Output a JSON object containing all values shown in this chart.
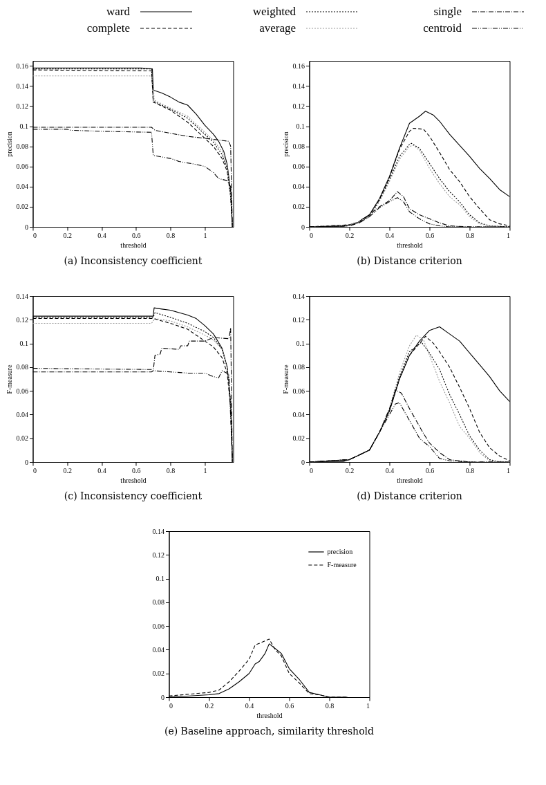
{
  "chart_data": [
    {
      "type": "line",
      "title": "(a) Inconsistency coefficient",
      "xlabel": "threshold",
      "ylabel": "precision",
      "xlim": [
        0,
        1.165
      ],
      "ylim": [
        0,
        0.165
      ],
      "xticks": [
        0,
        0.2,
        0.4,
        0.6,
        0.8,
        1
      ],
      "yticks": [
        0,
        0.02,
        0.04,
        0.06,
        0.08,
        0.1,
        0.12,
        0.14,
        0.16
      ],
      "legend": "top",
      "series": [
        {
          "name": "ward",
          "color": "#000000",
          "line_style": "solid",
          "x": [
            0,
            0.63,
            0.695,
            0.7,
            0.75,
            0.8,
            0.85,
            0.9,
            0.95,
            1.0,
            1.05,
            1.08,
            1.11,
            1.13,
            1.15,
            1.16
          ],
          "values": [
            0.158,
            0.158,
            0.157,
            0.136,
            0.133,
            0.129,
            0.124,
            0.121,
            0.112,
            0.101,
            0.092,
            0.085,
            0.075,
            0.062,
            0.035,
            0
          ]
        },
        {
          "name": "complete",
          "color": "#000000",
          "line_style": "dashed",
          "x": [
            0,
            0.69,
            0.7,
            0.8,
            0.9,
            1.0,
            1.05,
            1.1,
            1.13,
            1.15,
            1.16
          ],
          "values": [
            0.156,
            0.155,
            0.124,
            0.116,
            0.104,
            0.088,
            0.08,
            0.068,
            0.055,
            0.03,
            0
          ]
        },
        {
          "name": "weighted",
          "color": "#000000",
          "line_style": "dotted",
          "x": [
            0,
            0.69,
            0.7,
            0.8,
            0.9,
            1.0,
            1.05,
            1.1,
            1.13,
            1.15,
            1.16
          ],
          "values": [
            0.157,
            0.157,
            0.125,
            0.117,
            0.108,
            0.092,
            0.084,
            0.072,
            0.058,
            0.03,
            0
          ]
        },
        {
          "name": "average",
          "color": "#999999",
          "line_style": "dotted",
          "x": [
            0,
            0.68,
            0.7,
            0.705,
            0.8,
            0.9,
            1.0,
            1.05,
            1.1,
            1.13,
            1.15,
            1.16
          ],
          "values": [
            0.15,
            0.15,
            0.148,
            0.126,
            0.118,
            0.11,
            0.094,
            0.086,
            0.075,
            0.06,
            0.03,
            0
          ]
        },
        {
          "name": "single",
          "color": "#000000",
          "line_style": "dashdot",
          "x": [
            0,
            0.69,
            0.71,
            0.8,
            0.9,
            1.0,
            1.05,
            1.14,
            1.15,
            1.16
          ],
          "values": [
            0.099,
            0.099,
            0.096,
            0.093,
            0.09,
            0.088,
            0.087,
            0.085,
            0.08,
            0
          ]
        },
        {
          "name": "centroid",
          "color": "#000000",
          "line_style": "dashdotdot",
          "x": [
            0,
            0.2,
            0.22,
            0.4,
            0.69,
            0.7,
            0.8,
            0.85,
            0.95,
            1.0,
            1.05,
            1.08,
            1.13,
            1.15,
            1.16
          ],
          "values": [
            0.097,
            0.097,
            0.096,
            0.095,
            0.094,
            0.071,
            0.068,
            0.065,
            0.062,
            0.06,
            0.054,
            0.048,
            0.046,
            0.04,
            0
          ]
        }
      ]
    },
    {
      "type": "line",
      "title": "(b) Distance criterion",
      "xlabel": "threshold",
      "ylabel": "precision",
      "xlim": [
        0,
        1
      ],
      "ylim": [
        0,
        0.165
      ],
      "xticks": [
        0,
        0.2,
        0.4,
        0.6,
        0.8,
        1
      ],
      "yticks": [
        0,
        0.02,
        0.04,
        0.06,
        0.08,
        0.1,
        0.12,
        0.14,
        0.16
      ],
      "series": [
        {
          "color": "#000000",
          "line_style": "solid",
          "x": [
            0,
            0.1,
            0.17,
            0.2,
            0.24,
            0.26,
            0.3,
            0.35,
            0.4,
            0.45,
            0.5,
            0.55,
            0.58,
            0.62,
            0.65,
            0.7,
            0.75,
            0.8,
            0.85,
            0.9,
            0.95,
            1.0
          ],
          "values": [
            0,
            0.0005,
            0.0005,
            0.002,
            0.004,
            0.007,
            0.012,
            0.028,
            0.05,
            0.078,
            0.103,
            0.11,
            0.115,
            0.111,
            0.105,
            0.092,
            0.081,
            0.07,
            0.058,
            0.048,
            0.037,
            0.03
          ]
        },
        {
          "color": "#000000",
          "line_style": "dashed",
          "x": [
            0,
            0.2,
            0.25,
            0.3,
            0.35,
            0.4,
            0.45,
            0.5,
            0.52,
            0.57,
            0.6,
            0.65,
            0.7,
            0.75,
            0.8,
            0.85,
            0.9,
            0.95,
            1.0
          ],
          "values": [
            0,
            0.002,
            0.005,
            0.011,
            0.027,
            0.049,
            0.077,
            0.095,
            0.098,
            0.097,
            0.09,
            0.074,
            0.057,
            0.045,
            0.03,
            0.018,
            0.007,
            0.003,
            0.001
          ]
        },
        {
          "color": "#000000",
          "line_style": "dotted",
          "x": [
            0,
            0.2,
            0.25,
            0.3,
            0.35,
            0.4,
            0.45,
            0.5,
            0.51,
            0.55,
            0.6,
            0.65,
            0.7,
            0.75,
            0.8,
            0.85,
            0.9,
            1.0
          ],
          "values": [
            0,
            0.002,
            0.005,
            0.01,
            0.026,
            0.047,
            0.07,
            0.082,
            0.083,
            0.078,
            0.063,
            0.048,
            0.035,
            0.025,
            0.012,
            0.004,
            0.001,
            0
          ]
        },
        {
          "color": "#999999",
          "line_style": "dotted",
          "x": [
            0,
            0.2,
            0.25,
            0.3,
            0.35,
            0.4,
            0.45,
            0.5,
            0.52,
            0.55,
            0.6,
            0.65,
            0.7,
            0.75,
            0.8,
            0.85,
            0.9,
            1.0
          ],
          "values": [
            0,
            0.002,
            0.005,
            0.01,
            0.025,
            0.045,
            0.067,
            0.08,
            0.081,
            0.076,
            0.058,
            0.043,
            0.03,
            0.022,
            0.01,
            0.003,
            0.001,
            0
          ]
        },
        {
          "color": "#000000",
          "line_style": "dashdot",
          "x": [
            0,
            0.2,
            0.25,
            0.3,
            0.35,
            0.4,
            0.44,
            0.47,
            0.5,
            0.55,
            0.6,
            0.65,
            0.7,
            0.8,
            1.0
          ],
          "values": [
            0,
            0.001,
            0.004,
            0.012,
            0.02,
            0.026,
            0.035,
            0.03,
            0.018,
            0.012,
            0.008,
            0.004,
            0.001,
            0,
            0
          ]
        },
        {
          "color": "#000000",
          "line_style": "dashdotdot",
          "x": [
            0,
            0.2,
            0.25,
            0.3,
            0.35,
            0.4,
            0.44,
            0.47,
            0.5,
            0.55,
            0.6,
            0.65,
            0.7,
            1.0
          ],
          "values": [
            0,
            0.001,
            0.004,
            0.01,
            0.019,
            0.025,
            0.029,
            0.025,
            0.015,
            0.008,
            0.003,
            0.001,
            0,
            0
          ]
        }
      ]
    },
    {
      "type": "line",
      "title": "(c) Inconsistency coefficient",
      "xlabel": "threshold",
      "ylabel": "F-measure",
      "xlim": [
        0,
        1.165
      ],
      "ylim": [
        0,
        0.14
      ],
      "xticks": [
        0,
        0.2,
        0.4,
        0.6,
        0.8,
        1
      ],
      "yticks": [
        0,
        0.02,
        0.04,
        0.06,
        0.08,
        0.1,
        0.12,
        0.14
      ],
      "series": [
        {
          "color": "#000000",
          "line_style": "solid",
          "x": [
            0,
            0.7,
            0.705,
            0.75,
            0.8,
            0.85,
            0.9,
            0.95,
            1.0,
            1.05,
            1.1,
            1.13,
            1.15,
            1.16
          ],
          "values": [
            0.123,
            0.123,
            0.13,
            0.129,
            0.128,
            0.126,
            0.124,
            0.121,
            0.115,
            0.108,
            0.096,
            0.08,
            0.05,
            0
          ]
        },
        {
          "color": "#000000",
          "line_style": "dashed",
          "x": [
            0,
            0.7,
            0.8,
            0.9,
            1.0,
            1.05,
            1.1,
            1.13,
            1.15,
            1.16
          ],
          "values": [
            0.121,
            0.121,
            0.117,
            0.112,
            0.102,
            0.097,
            0.088,
            0.075,
            0.045,
            0
          ]
        },
        {
          "color": "#000000",
          "line_style": "dotted",
          "x": [
            0,
            0.7,
            0.71,
            0.8,
            0.9,
            1.0,
            1.05,
            1.1,
            1.13,
            1.15,
            1.16
          ],
          "values": [
            0.122,
            0.122,
            0.126,
            0.122,
            0.117,
            0.11,
            0.105,
            0.095,
            0.08,
            0.05,
            0
          ]
        },
        {
          "color": "#999999",
          "line_style": "dotted",
          "x": [
            0,
            0.69,
            0.71,
            0.8,
            0.9,
            1.0,
            1.05,
            1.1,
            1.13,
            1.15,
            1.16
          ],
          "values": [
            0.117,
            0.117,
            0.121,
            0.119,
            0.114,
            0.107,
            0.103,
            0.095,
            0.08,
            0.05,
            0
          ]
        },
        {
          "color": "#000000",
          "line_style": "dashdot",
          "x": [
            0,
            0.69,
            0.7,
            0.71,
            0.74,
            0.75,
            0.85,
            0.86,
            0.9,
            0.91,
            1.0,
            1.05,
            1.14,
            1.15,
            1.16
          ],
          "values": [
            0.076,
            0.076,
            0.077,
            0.09,
            0.091,
            0.096,
            0.095,
            0.098,
            0.098,
            0.102,
            0.102,
            0.105,
            0.104,
            0.113,
            0
          ]
        },
        {
          "color": "#000000",
          "line_style": "dashdotdot",
          "x": [
            0,
            0.69,
            0.7,
            0.8,
            0.9,
            1.0,
            1.05,
            1.08,
            1.1,
            1.14,
            1.16
          ],
          "values": [
            0.079,
            0.078,
            0.077,
            0.076,
            0.075,
            0.075,
            0.072,
            0.071,
            0.077,
            0.074,
            0
          ]
        }
      ]
    },
    {
      "type": "line",
      "title": "(d) Distance criterion",
      "xlabel": "threshold",
      "ylabel": "F-measure",
      "xlim": [
        0,
        1
      ],
      "ylim": [
        0,
        0.14
      ],
      "xticks": [
        0,
        0.2,
        0.4,
        0.6,
        0.8,
        1
      ],
      "yticks": [
        0,
        0.02,
        0.04,
        0.06,
        0.08,
        0.1,
        0.12,
        0.14
      ],
      "series": [
        {
          "color": "#000000",
          "line_style": "solid",
          "x": [
            0,
            0.1,
            0.17,
            0.2,
            0.25,
            0.3,
            0.35,
            0.4,
            0.45,
            0.5,
            0.55,
            0.6,
            0.65,
            0.7,
            0.75,
            0.8,
            0.85,
            0.9,
            0.95,
            1.0
          ],
          "values": [
            0,
            0.0005,
            0.0005,
            0.002,
            0.006,
            0.01,
            0.025,
            0.043,
            0.07,
            0.09,
            0.102,
            0.111,
            0.114,
            0.108,
            0.102,
            0.092,
            0.082,
            0.072,
            0.06,
            0.051
          ]
        },
        {
          "color": "#000000",
          "line_style": "dashed",
          "x": [
            0,
            0.2,
            0.3,
            0.35,
            0.4,
            0.45,
            0.5,
            0.55,
            0.58,
            0.62,
            0.65,
            0.7,
            0.75,
            0.8,
            0.85,
            0.9,
            0.95,
            1.0
          ],
          "values": [
            0,
            0.002,
            0.01,
            0.025,
            0.043,
            0.07,
            0.09,
            0.1,
            0.106,
            0.1,
            0.093,
            0.08,
            0.063,
            0.045,
            0.025,
            0.012,
            0.005,
            0.001
          ]
        },
        {
          "color": "#000000",
          "line_style": "dotted",
          "x": [
            0,
            0.2,
            0.3,
            0.35,
            0.4,
            0.45,
            0.5,
            0.56,
            0.6,
            0.65,
            0.7,
            0.75,
            0.8,
            0.85,
            0.9,
            0.95,
            1.0
          ],
          "values": [
            0,
            0.002,
            0.01,
            0.025,
            0.044,
            0.072,
            0.093,
            0.101,
            0.092,
            0.078,
            0.057,
            0.04,
            0.022,
            0.01,
            0.002,
            0,
            0
          ]
        },
        {
          "color": "#999999",
          "line_style": "dotted",
          "x": [
            0,
            0.2,
            0.3,
            0.35,
            0.4,
            0.45,
            0.5,
            0.535,
            0.57,
            0.6,
            0.65,
            0.7,
            0.75,
            0.8,
            0.85,
            0.9,
            1.0
          ],
          "values": [
            0,
            0.002,
            0.01,
            0.025,
            0.045,
            0.075,
            0.098,
            0.107,
            0.103,
            0.09,
            0.068,
            0.05,
            0.03,
            0.02,
            0.008,
            0.001,
            0
          ]
        },
        {
          "color": "#000000",
          "line_style": "dashdot",
          "x": [
            0,
            0.2,
            0.3,
            0.35,
            0.4,
            0.43,
            0.46,
            0.5,
            0.55,
            0.57,
            0.6,
            0.65,
            0.7,
            0.8,
            1.0
          ],
          "values": [
            0,
            0.002,
            0.01,
            0.025,
            0.045,
            0.061,
            0.058,
            0.045,
            0.03,
            0.024,
            0.016,
            0.008,
            0.002,
            0,
            0
          ]
        },
        {
          "color": "#000000",
          "line_style": "dashdotdot",
          "x": [
            0,
            0.2,
            0.3,
            0.35,
            0.4,
            0.43,
            0.45,
            0.5,
            0.55,
            0.6,
            0.65,
            0.7,
            0.8,
            1.0
          ],
          "values": [
            0,
            0.002,
            0.01,
            0.025,
            0.04,
            0.049,
            0.05,
            0.035,
            0.02,
            0.013,
            0.003,
            0.001,
            0,
            0
          ]
        }
      ]
    },
    {
      "type": "line",
      "title": "(e) Baseline approach, similarity threshold",
      "xlabel": "threshold",
      "xlim": [
        0,
        1
      ],
      "ylim": [
        0,
        0.14
      ],
      "xticks": [
        0,
        0.2,
        0.4,
        0.6,
        0.8,
        1
      ],
      "yticks": [
        0,
        0.02,
        0.04,
        0.06,
        0.08,
        0.1,
        0.12,
        0.14
      ],
      "legend": "top right",
      "series": [
        {
          "name": "precision",
          "color": "#000000",
          "line_style": "solid",
          "x": [
            0,
            0.2,
            0.25,
            0.3,
            0.35,
            0.4,
            0.43,
            0.45,
            0.48,
            0.5,
            0.53,
            0.56,
            0.6,
            0.65,
            0.7,
            0.75,
            0.8,
            0.89
          ],
          "values": [
            0,
            0.002,
            0.003,
            0.007,
            0.013,
            0.02,
            0.028,
            0.03,
            0.037,
            0.045,
            0.041,
            0.037,
            0.024,
            0.015,
            0.004,
            0.002,
            0,
            0
          ]
        },
        {
          "name": "F-measure",
          "color": "#000000",
          "line_style": "dashed",
          "x": [
            0,
            0.2,
            0.25,
            0.3,
            0.35,
            0.4,
            0.43,
            0.46,
            0.5,
            0.53,
            0.56,
            0.6,
            0.65,
            0.7,
            0.75,
            0.8,
            0.89
          ],
          "values": [
            0.001,
            0.004,
            0.006,
            0.013,
            0.022,
            0.032,
            0.044,
            0.046,
            0.049,
            0.04,
            0.035,
            0.02,
            0.012,
            0.003,
            0.002,
            0,
            0
          ]
        }
      ]
    }
  ]
}
